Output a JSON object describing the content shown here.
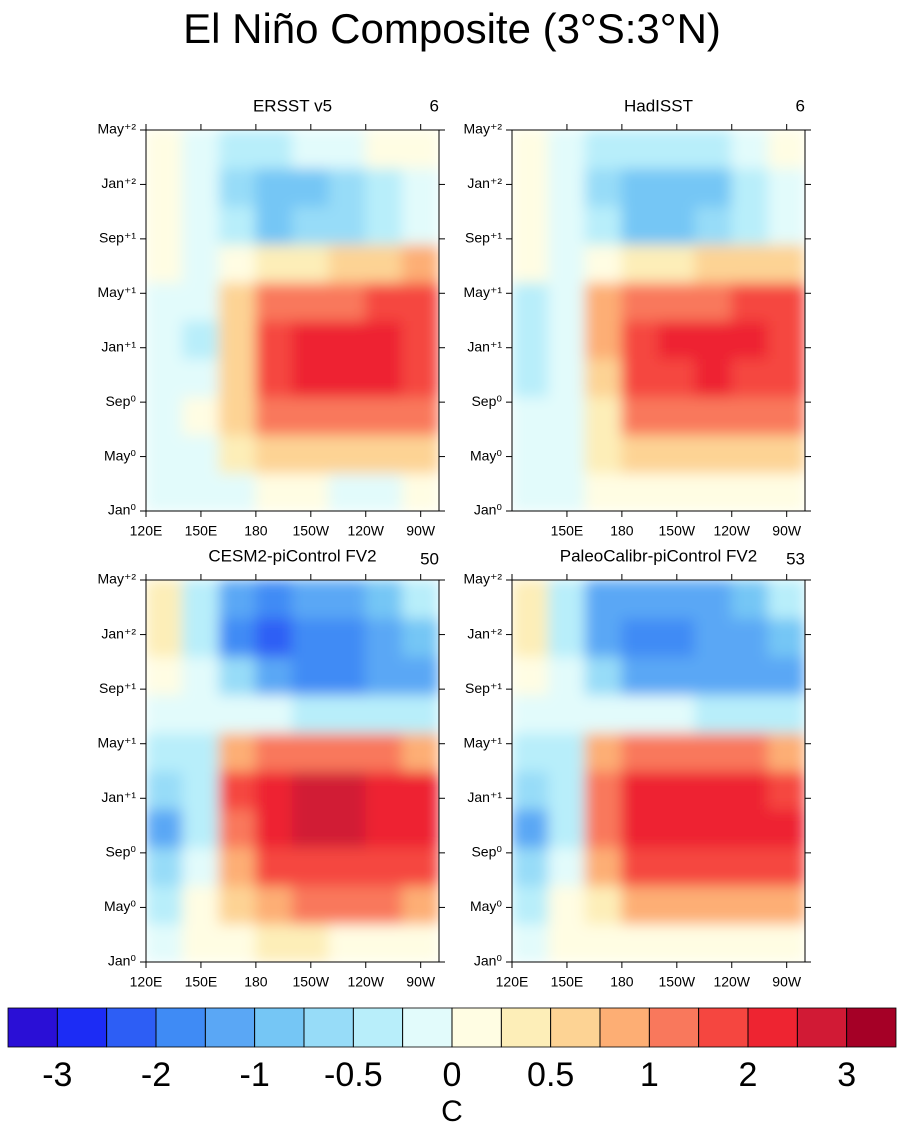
{
  "title": "El Niño Composite (3°S:3°N)",
  "chart_data": [
    {
      "type": "contour",
      "title": "ERSST v5",
      "count": 6,
      "xlim": [
        120,
        280
      ],
      "ylim": [
        0,
        28
      ],
      "xticks": [
        {
          "value": 120,
          "label": "120E"
        },
        {
          "value": 150,
          "label": "150E"
        },
        180,
        {
          "value": 210,
          "label": "150W"
        },
        {
          "value": 240,
          "label": "120W"
        },
        {
          "value": 270,
          "label": "90W"
        }
      ],
      "yticks": [
        {
          "value": 0,
          "label": "Jan⁰"
        },
        {
          "value": 4,
          "label": "May⁰"
        },
        {
          "value": 8,
          "label": "Sep⁰"
        },
        {
          "value": 12,
          "label": "Jan⁺¹"
        },
        {
          "value": 16,
          "label": "May⁺¹"
        },
        {
          "value": 20,
          "label": "Sep⁺¹"
        },
        {
          "value": 24,
          "label": "Jan⁺²"
        },
        {
          "value": 28,
          "label": "May⁺²"
        }
      ],
      "x": [
        130,
        150,
        170,
        190,
        210,
        230,
        250,
        270
      ],
      "y": [
        1.4,
        4.2,
        7,
        9.8,
        12.6,
        15.4,
        18.2,
        21,
        23.8,
        26.6
      ],
      "z": [
        [
          -0.1,
          -0.1,
          -0.1,
          0.1,
          0.1,
          -0.1,
          -0.2,
          0.1
        ],
        [
          -0.1,
          -0.1,
          0.3,
          0.5,
          0.6,
          0.6,
          0.7,
          0.6
        ],
        [
          -0.1,
          0.1,
          0.5,
          1.0,
          1.3,
          1.4,
          1.4,
          1.3
        ],
        [
          -0.2,
          -0.2,
          0.5,
          1.5,
          2.0,
          2.1,
          2.0,
          1.7
        ],
        [
          -0.2,
          -0.3,
          0.7,
          1.6,
          2.1,
          2.3,
          2.2,
          1.9
        ],
        [
          -0.2,
          -0.2,
          0.6,
          1.0,
          1.4,
          1.4,
          1.6,
          1.8
        ],
        [
          0.1,
          -0.1,
          0.1,
          0.3,
          0.4,
          0.5,
          0.6,
          0.8
        ],
        [
          0.2,
          -0.1,
          -0.5,
          -0.9,
          -0.7,
          -0.6,
          -0.3,
          -0.1
        ],
        [
          0.1,
          -0.1,
          -0.6,
          -0.8,
          -0.8,
          -0.7,
          -0.3,
          -0.1
        ],
        [
          0.1,
          -0.2,
          -0.4,
          -0.3,
          -0.2,
          -0.1,
          0.1,
          0.1
        ]
      ]
    },
    {
      "type": "contour",
      "title": "HadISST",
      "count": 6,
      "xlim": [
        120,
        280
      ],
      "ylim": [
        0,
        28
      ],
      "xticks": [
        {
          "value": 150,
          "label": "150E"
        },
        180,
        {
          "value": 210,
          "label": "150W"
        },
        {
          "value": 240,
          "label": "120W"
        },
        {
          "value": 270,
          "label": "90W"
        }
      ],
      "yticks": [
        {
          "value": 0,
          "label": "Jan⁰"
        },
        {
          "value": 4,
          "label": "May⁰"
        },
        {
          "value": 8,
          "label": "Sep⁰"
        },
        {
          "value": 12,
          "label": "Jan⁺¹"
        },
        {
          "value": 16,
          "label": "May⁺¹"
        },
        {
          "value": 20,
          "label": "Sep⁺¹"
        },
        {
          "value": 24,
          "label": "Jan⁺²"
        },
        {
          "value": 28,
          "label": "May⁺²"
        }
      ],
      "x": [
        130,
        150,
        170,
        190,
        210,
        230,
        250,
        270
      ],
      "y": [
        1.4,
        4.2,
        7,
        9.8,
        12.6,
        15.4,
        18.2,
        21,
        23.8,
        26.6
      ],
      "z": [
        [
          -0.1,
          -0.1,
          0.1,
          0.1,
          0.1,
          0.1,
          0.1,
          0.1
        ],
        [
          -0.2,
          -0.1,
          0.3,
          0.5,
          0.6,
          0.6,
          0.6,
          0.6
        ],
        [
          -0.2,
          -0.1,
          0.4,
          1.0,
          1.3,
          1.3,
          1.3,
          1.2
        ],
        [
          -0.3,
          -0.2,
          0.6,
          1.6,
          1.9,
          2.0,
          1.9,
          1.8
        ],
        [
          -0.3,
          -0.2,
          0.8,
          1.8,
          2.1,
          2.2,
          2.1,
          1.9
        ],
        [
          -0.3,
          -0.2,
          0.9,
          1.2,
          1.4,
          1.4,
          1.5,
          1.6
        ],
        [
          0.1,
          -0.1,
          0.2,
          0.3,
          0.4,
          0.5,
          0.6,
          0.7
        ],
        [
          0.2,
          -0.1,
          -0.5,
          -0.8,
          -0.8,
          -0.6,
          -0.4,
          -0.2
        ],
        [
          0.1,
          -0.2,
          -0.6,
          -0.9,
          -0.9,
          -0.8,
          -0.5,
          -0.2
        ],
        [
          0.1,
          -0.2,
          -0.4,
          -0.4,
          -0.3,
          -0.3,
          -0.2,
          0.1
        ]
      ]
    },
    {
      "type": "contour",
      "title": "CESM2-piControl FV2",
      "count": 50,
      "xlim": [
        120,
        280
      ],
      "ylim": [
        0,
        28
      ],
      "xticks": [
        {
          "value": 120,
          "label": "120E"
        },
        {
          "value": 150,
          "label": "150E"
        },
        180,
        {
          "value": 210,
          "label": "150W"
        },
        {
          "value": 240,
          "label": "120W"
        },
        {
          "value": 270,
          "label": "90W"
        }
      ],
      "yticks": [
        {
          "value": 0,
          "label": "Jan⁰"
        },
        {
          "value": 4,
          "label": "May⁰"
        },
        {
          "value": 8,
          "label": "Sep⁰"
        },
        {
          "value": 12,
          "label": "Jan⁺¹"
        },
        {
          "value": 16,
          "label": "May⁺¹"
        },
        {
          "value": 20,
          "label": "Sep⁺¹"
        },
        {
          "value": 24,
          "label": "Jan⁺²"
        },
        {
          "value": 28,
          "label": "May⁺²"
        }
      ],
      "x": [
        130,
        150,
        170,
        190,
        210,
        230,
        250,
        270
      ],
      "y": [
        1.4,
        4.2,
        7,
        9.8,
        12.6,
        15.4,
        18.2,
        21,
        23.8,
        26.6
      ],
      "z": [
        [
          -0.2,
          0.1,
          0.2,
          0.3,
          0.3,
          0.2,
          0.2,
          0.2
        ],
        [
          -0.3,
          0.1,
          0.5,
          0.9,
          1.0,
          1.0,
          1.0,
          0.9
        ],
        [
          -0.6,
          -0.2,
          0.9,
          1.6,
          1.9,
          1.9,
          1.9,
          1.8
        ],
        [
          -1.2,
          -0.5,
          1.4,
          2.2,
          2.5,
          2.5,
          2.4,
          2.3
        ],
        [
          -0.7,
          -0.5,
          1.6,
          2.3,
          2.6,
          2.5,
          2.3,
          2.0
        ],
        [
          -0.5,
          -0.4,
          0.9,
          1.2,
          1.3,
          1.2,
          1.1,
          0.9
        ],
        [
          -0.2,
          -0.2,
          -0.1,
          -0.2,
          -0.3,
          -0.4,
          -0.5,
          -0.4
        ],
        [
          0.2,
          -0.2,
          -0.7,
          -1.3,
          -1.6,
          -1.7,
          -1.5,
          -1.2
        ],
        [
          0.3,
          -0.4,
          -1.6,
          -2.1,
          -2.0,
          -1.7,
          -1.3,
          -0.9
        ],
        [
          0.3,
          -0.3,
          -1.3,
          -1.6,
          -1.5,
          -1.2,
          -0.9,
          -0.5
        ]
      ]
    },
    {
      "type": "contour",
      "title": "PaleoCalibr-piControl FV2",
      "count": 53,
      "xlim": [
        120,
        280
      ],
      "ylim": [
        0,
        28
      ],
      "xticks": [
        {
          "value": 120,
          "label": "120E"
        },
        {
          "value": 150,
          "label": "150E"
        },
        180,
        {
          "value": 210,
          "label": "150W"
        },
        {
          "value": 240,
          "label": "120W"
        },
        {
          "value": 270,
          "label": "90W"
        }
      ],
      "yticks": [
        {
          "value": 0,
          "label": "Jan⁰"
        },
        {
          "value": 4,
          "label": "May⁰"
        },
        {
          "value": 8,
          "label": "Sep⁰"
        },
        {
          "value": 12,
          "label": "Jan⁺¹"
        },
        {
          "value": 16,
          "label": "May⁺¹"
        },
        {
          "value": 20,
          "label": "Sep⁺¹"
        },
        {
          "value": 24,
          "label": "Jan⁺²"
        },
        {
          "value": 28,
          "label": "May⁺²"
        }
      ],
      "x": [
        130,
        150,
        170,
        190,
        210,
        230,
        250,
        270
      ],
      "y": [
        1.4,
        4.2,
        7,
        9.8,
        12.6,
        15.4,
        18.2,
        21,
        23.8,
        26.6
      ],
      "z": [
        [
          -0.1,
          0.1,
          0.1,
          0.2,
          0.2,
          0.1,
          0.1,
          0.1
        ],
        [
          -0.3,
          0.1,
          0.4,
          0.8,
          0.9,
          0.9,
          0.9,
          0.8
        ],
        [
          -0.6,
          -0.2,
          0.8,
          1.5,
          1.8,
          1.8,
          1.8,
          1.7
        ],
        [
          -1.1,
          -0.4,
          1.3,
          2.0,
          2.3,
          2.3,
          2.2,
          2.1
        ],
        [
          -0.6,
          -0.4,
          1.4,
          2.1,
          2.3,
          2.2,
          2.0,
          1.8
        ],
        [
          -0.4,
          -0.3,
          0.8,
          1.1,
          1.2,
          1.1,
          1.0,
          0.8
        ],
        [
          -0.2,
          -0.2,
          -0.1,
          -0.2,
          -0.2,
          -0.3,
          -0.4,
          -0.3
        ],
        [
          0.2,
          -0.2,
          -0.6,
          -1.1,
          -1.4,
          -1.5,
          -1.4,
          -1.2
        ],
        [
          0.3,
          -0.3,
          -1.3,
          -1.8,
          -1.7,
          -1.5,
          -1.2,
          -0.8
        ],
        [
          0.3,
          -0.3,
          -1.1,
          -1.4,
          -1.3,
          -1.1,
          -0.8,
          -0.4
        ]
      ]
    }
  ],
  "colorbar": {
    "levels": [
      -3,
      -2.5,
      -2,
      -1.5,
      -1,
      -0.75,
      -0.5,
      -0.25,
      0,
      0.25,
      0.5,
      0.75,
      1,
      1.5,
      2,
      2.5,
      3
    ],
    "colors": [
      "#2a0fd6",
      "#1c2cf5",
      "#2d5ef5",
      "#3f8bf5",
      "#5aa7f5",
      "#75c6f5",
      "#97dcf8",
      "#b8eefa",
      "#e2fbfb",
      "#fffde3",
      "#fdeeb8",
      "#fdd394",
      "#fdae74",
      "#f9785c",
      "#f54640",
      "#ee2431",
      "#d11a35",
      "#a50026"
    ],
    "ticks": [
      -3,
      -2,
      -1,
      -0.5,
      0,
      0.5,
      1,
      2,
      3
    ],
    "label": "C"
  }
}
